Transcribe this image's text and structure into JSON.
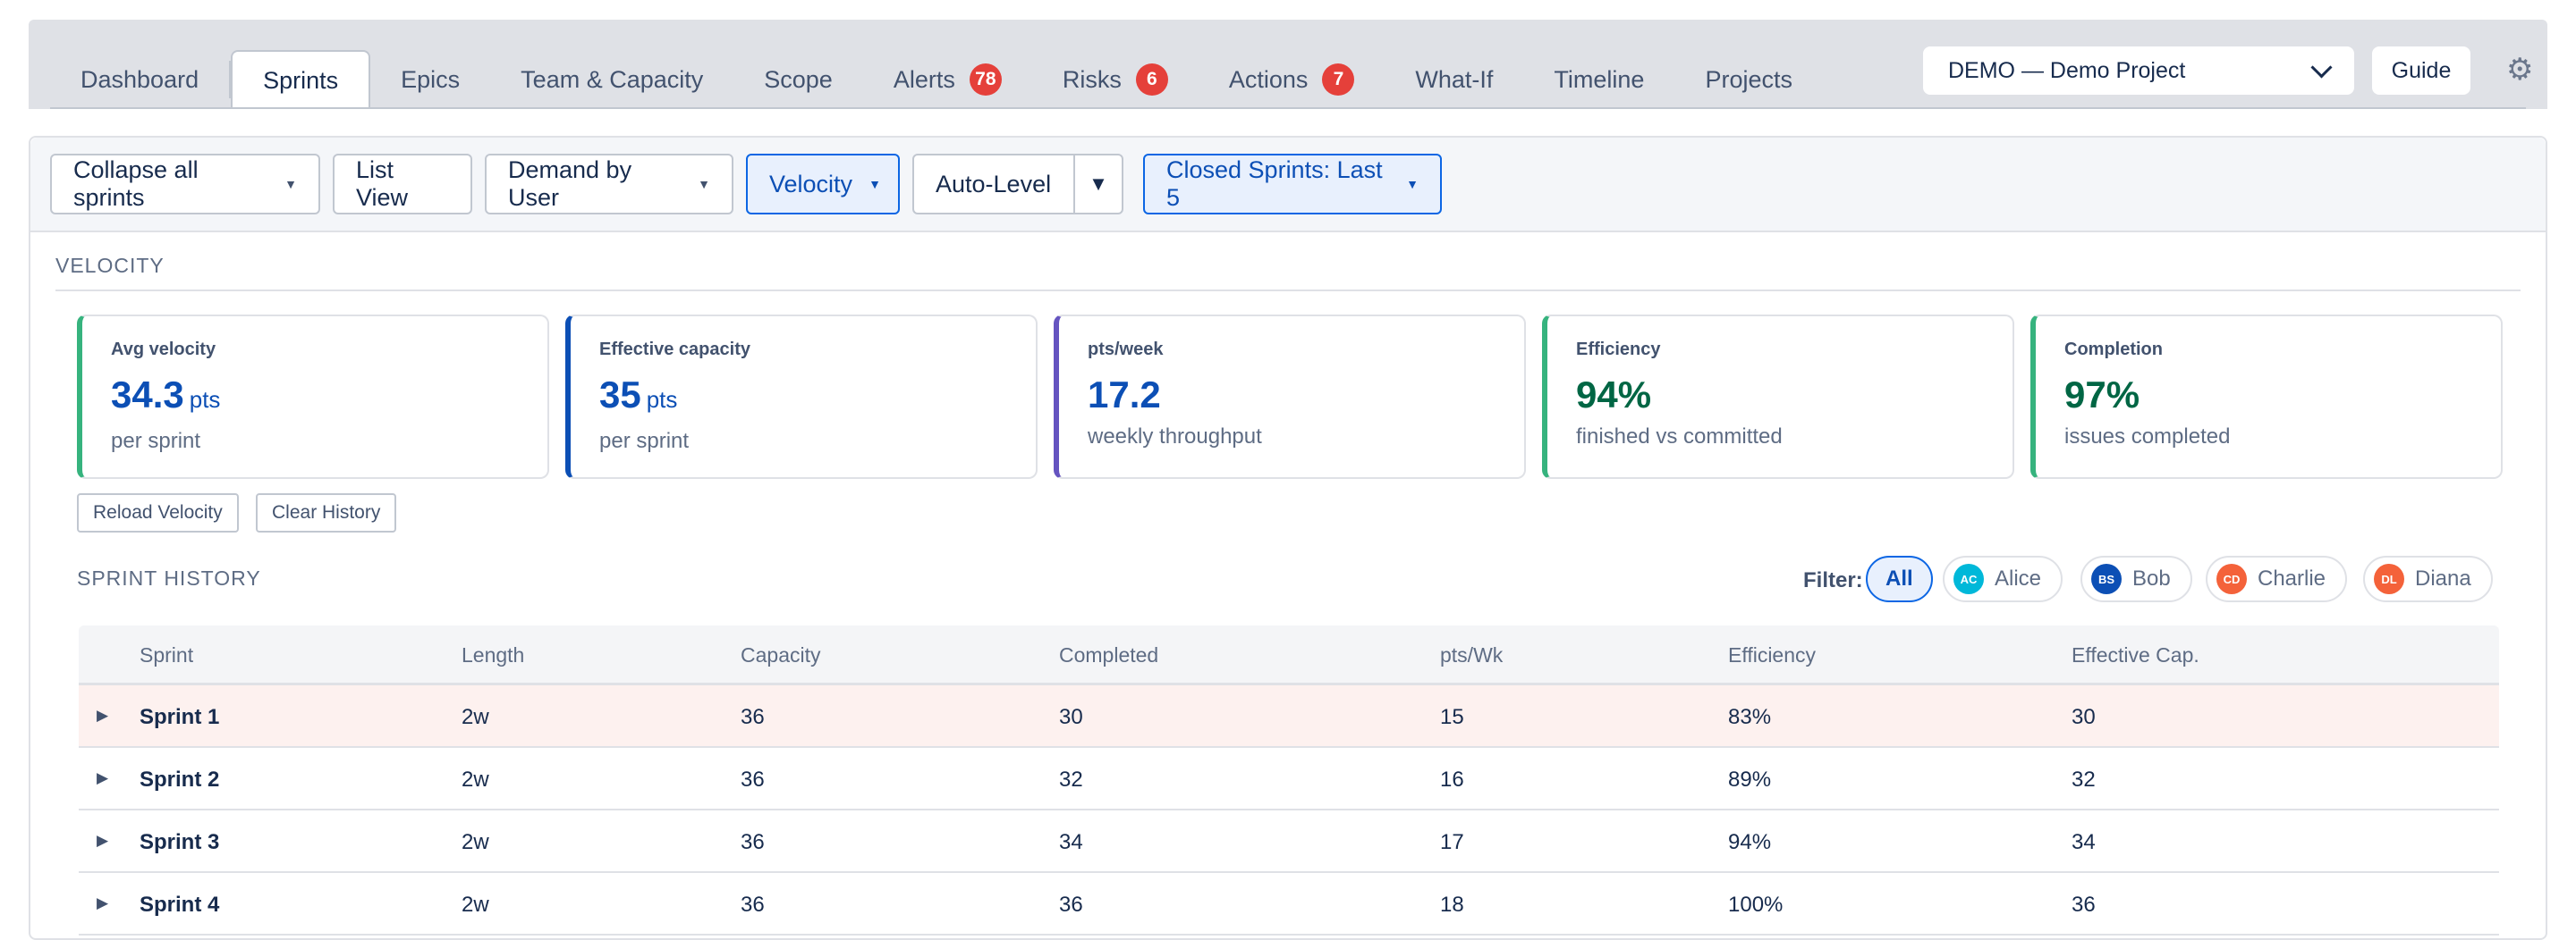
{
  "tabs": [
    {
      "label": "Dashboard",
      "badge": null,
      "active": false
    },
    {
      "label": "Sprints",
      "badge": null,
      "active": true
    },
    {
      "label": "Epics",
      "badge": null,
      "active": false
    },
    {
      "label": "Team & Capacity",
      "badge": null,
      "active": false
    },
    {
      "label": "Scope",
      "badge": null,
      "active": false
    },
    {
      "label": "Alerts",
      "badge": "78",
      "active": false
    },
    {
      "label": "Risks",
      "badge": "6",
      "active": false
    },
    {
      "label": "Actions",
      "badge": "7",
      "active": false
    },
    {
      "label": "What-If",
      "badge": null,
      "active": false
    },
    {
      "label": "Timeline",
      "badge": null,
      "active": false
    },
    {
      "label": "Projects",
      "badge": null,
      "active": false
    }
  ],
  "header": {
    "project_select_value": "DEMO — Demo Project",
    "guide_label": "Guide",
    "settings_icon": "gear-icon"
  },
  "toolbar": {
    "collapse_label": "Collapse all sprints",
    "list_view_label": "List View",
    "demand_label": "Demand by User",
    "velocity_label": "Velocity",
    "auto_level_label": "Auto-Level",
    "closed_sprints_label": "Closed Sprints: Last 5"
  },
  "velocity": {
    "section_title": "VELOCITY",
    "cards": [
      {
        "label": "Avg velocity",
        "value": "34.3",
        "unit": "pts",
        "sub": "per sprint",
        "accent": "#36b37e",
        "value_color": "#0c4fb5"
      },
      {
        "label": "Effective capacity",
        "value": "35",
        "unit": "pts",
        "sub": "per sprint",
        "accent": "#0c4fb5",
        "value_color": "#0c4fb5"
      },
      {
        "label": "pts/week",
        "value": "17.2",
        "unit": "",
        "sub": "weekly throughput",
        "accent": "#6554c0",
        "value_color": "#0c4fb5"
      },
      {
        "label": "Efficiency",
        "value": "94%",
        "unit": "",
        "sub": "finished vs committed",
        "accent": "#36b37e",
        "value_color": "#006644"
      },
      {
        "label": "Completion",
        "value": "97%",
        "unit": "",
        "sub": "issues completed",
        "accent": "#36b37e",
        "value_color": "#006644"
      }
    ],
    "reload_label": "Reload Velocity",
    "clear_label": "Clear History"
  },
  "history": {
    "section_title": "SPRINT HISTORY",
    "filter_label": "Filter:",
    "filters": [
      {
        "label": "All",
        "initials": "",
        "color": ""
      },
      {
        "label": "Alice",
        "initials": "AC",
        "color": "#00b8d9"
      },
      {
        "label": "Bob",
        "initials": "BS",
        "color": "#0c4fb5"
      },
      {
        "label": "Charlie",
        "initials": "CD",
        "color": "#f4623a"
      },
      {
        "label": "Diana",
        "initials": "DL",
        "color": "#f4623a"
      }
    ],
    "columns": [
      "Sprint",
      "Length",
      "Capacity",
      "Completed",
      "pts/Wk",
      "Efficiency",
      "Effective Cap."
    ],
    "rows": [
      [
        "Sprint 1",
        "2w",
        "36",
        "30",
        "15",
        "83%",
        "30"
      ],
      [
        "Sprint 2",
        "2w",
        "36",
        "32",
        "16",
        "89%",
        "32"
      ],
      [
        "Sprint 3",
        "2w",
        "36",
        "34",
        "17",
        "94%",
        "34"
      ],
      [
        "Sprint 4",
        "2w",
        "36",
        "36",
        "18",
        "100%",
        "36"
      ]
    ]
  }
}
